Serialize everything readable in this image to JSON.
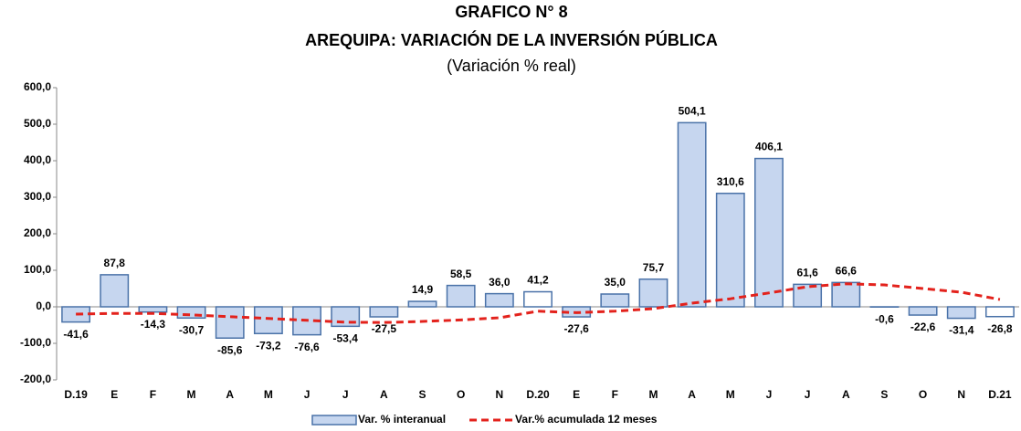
{
  "chart_data": {
    "type": "bar",
    "title": "GRAFICO N° 8",
    "subtitle": "AREQUIPA: VARIACIÓN DE LA INVERSIÓN PÚBLICA",
    "note": "(Variación % real)",
    "categories": [
      "D.19",
      "E",
      "F",
      "M",
      "A",
      "M",
      "J",
      "J",
      "A",
      "S",
      "O",
      "N",
      "D.20",
      "E",
      "F",
      "M",
      "A",
      "M",
      "J",
      "J",
      "A",
      "S",
      "O",
      "N",
      "D.21"
    ],
    "series": [
      {
        "name": "Var. % interanual",
        "type": "bar",
        "color": "#c6d6ef",
        "edge_color": "#4a72a8",
        "bar_colors": [
          "#c6d6ef",
          "#c6d6ef",
          "#c6d6ef",
          "#c6d6ef",
          "#c6d6ef",
          "#c6d6ef",
          "#c6d6ef",
          "#c6d6ef",
          "#c6d6ef",
          "#c6d6ef",
          "#c6d6ef",
          "#c6d6ef",
          "#ffffff",
          "#c6d6ef",
          "#c6d6ef",
          "#c6d6ef",
          "#c6d6ef",
          "#c6d6ef",
          "#c6d6ef",
          "#c6d6ef",
          "#c6d6ef",
          "#c6d6ef",
          "#c6d6ef",
          "#c6d6ef",
          "#ffffff"
        ],
        "values": [
          -41.6,
          87.8,
          -14.3,
          -30.7,
          -85.6,
          -73.2,
          -76.6,
          -53.4,
          -27.5,
          14.9,
          58.5,
          36.0,
          41.2,
          -27.6,
          35.0,
          75.7,
          504.1,
          310.6,
          406.1,
          61.6,
          66.6,
          -0.6,
          -22.6,
          -31.4,
          -26.8
        ],
        "value_labels": [
          "-41,6",
          "87,8",
          "-14,3",
          "-30,7",
          "-85,6",
          "-73,2",
          "-76,6",
          "-53,4",
          "-27,5",
          "14,9",
          "58,5",
          "36,0",
          "41,2",
          "-27,6",
          "35,0",
          "75,7",
          "504,1",
          "310,6",
          "406,1",
          "61,6",
          "66,6",
          "-0,6",
          "-22,6",
          "-31,4",
          "-26,8"
        ]
      },
      {
        "name": "Var.% acumulada 12 meses",
        "type": "line",
        "color": "#e3221c",
        "dashed": true,
        "values": [
          -20,
          -18,
          -18,
          -22,
          -27,
          -32,
          -37,
          -42,
          -43,
          -40,
          -36,
          -30,
          -12,
          -16,
          -12,
          -5,
          10,
          22,
          38,
          55,
          63,
          60,
          50,
          40,
          20
        ]
      }
    ],
    "ylim": [
      -200,
      600
    ],
    "yticks": [
      {
        "value": -200,
        "label": "-200,0"
      },
      {
        "value": -100,
        "label": "-100,0"
      },
      {
        "value": 0,
        "label": "0,0"
      },
      {
        "value": 100,
        "label": "100,0"
      },
      {
        "value": 200,
        "label": "200,0"
      },
      {
        "value": 300,
        "label": "300,0"
      },
      {
        "value": 400,
        "label": "400,0"
      },
      {
        "value": 500,
        "label": "500,0"
      },
      {
        "value": 600,
        "label": "600,0"
      }
    ],
    "grid": false,
    "legend": "bottom"
  }
}
